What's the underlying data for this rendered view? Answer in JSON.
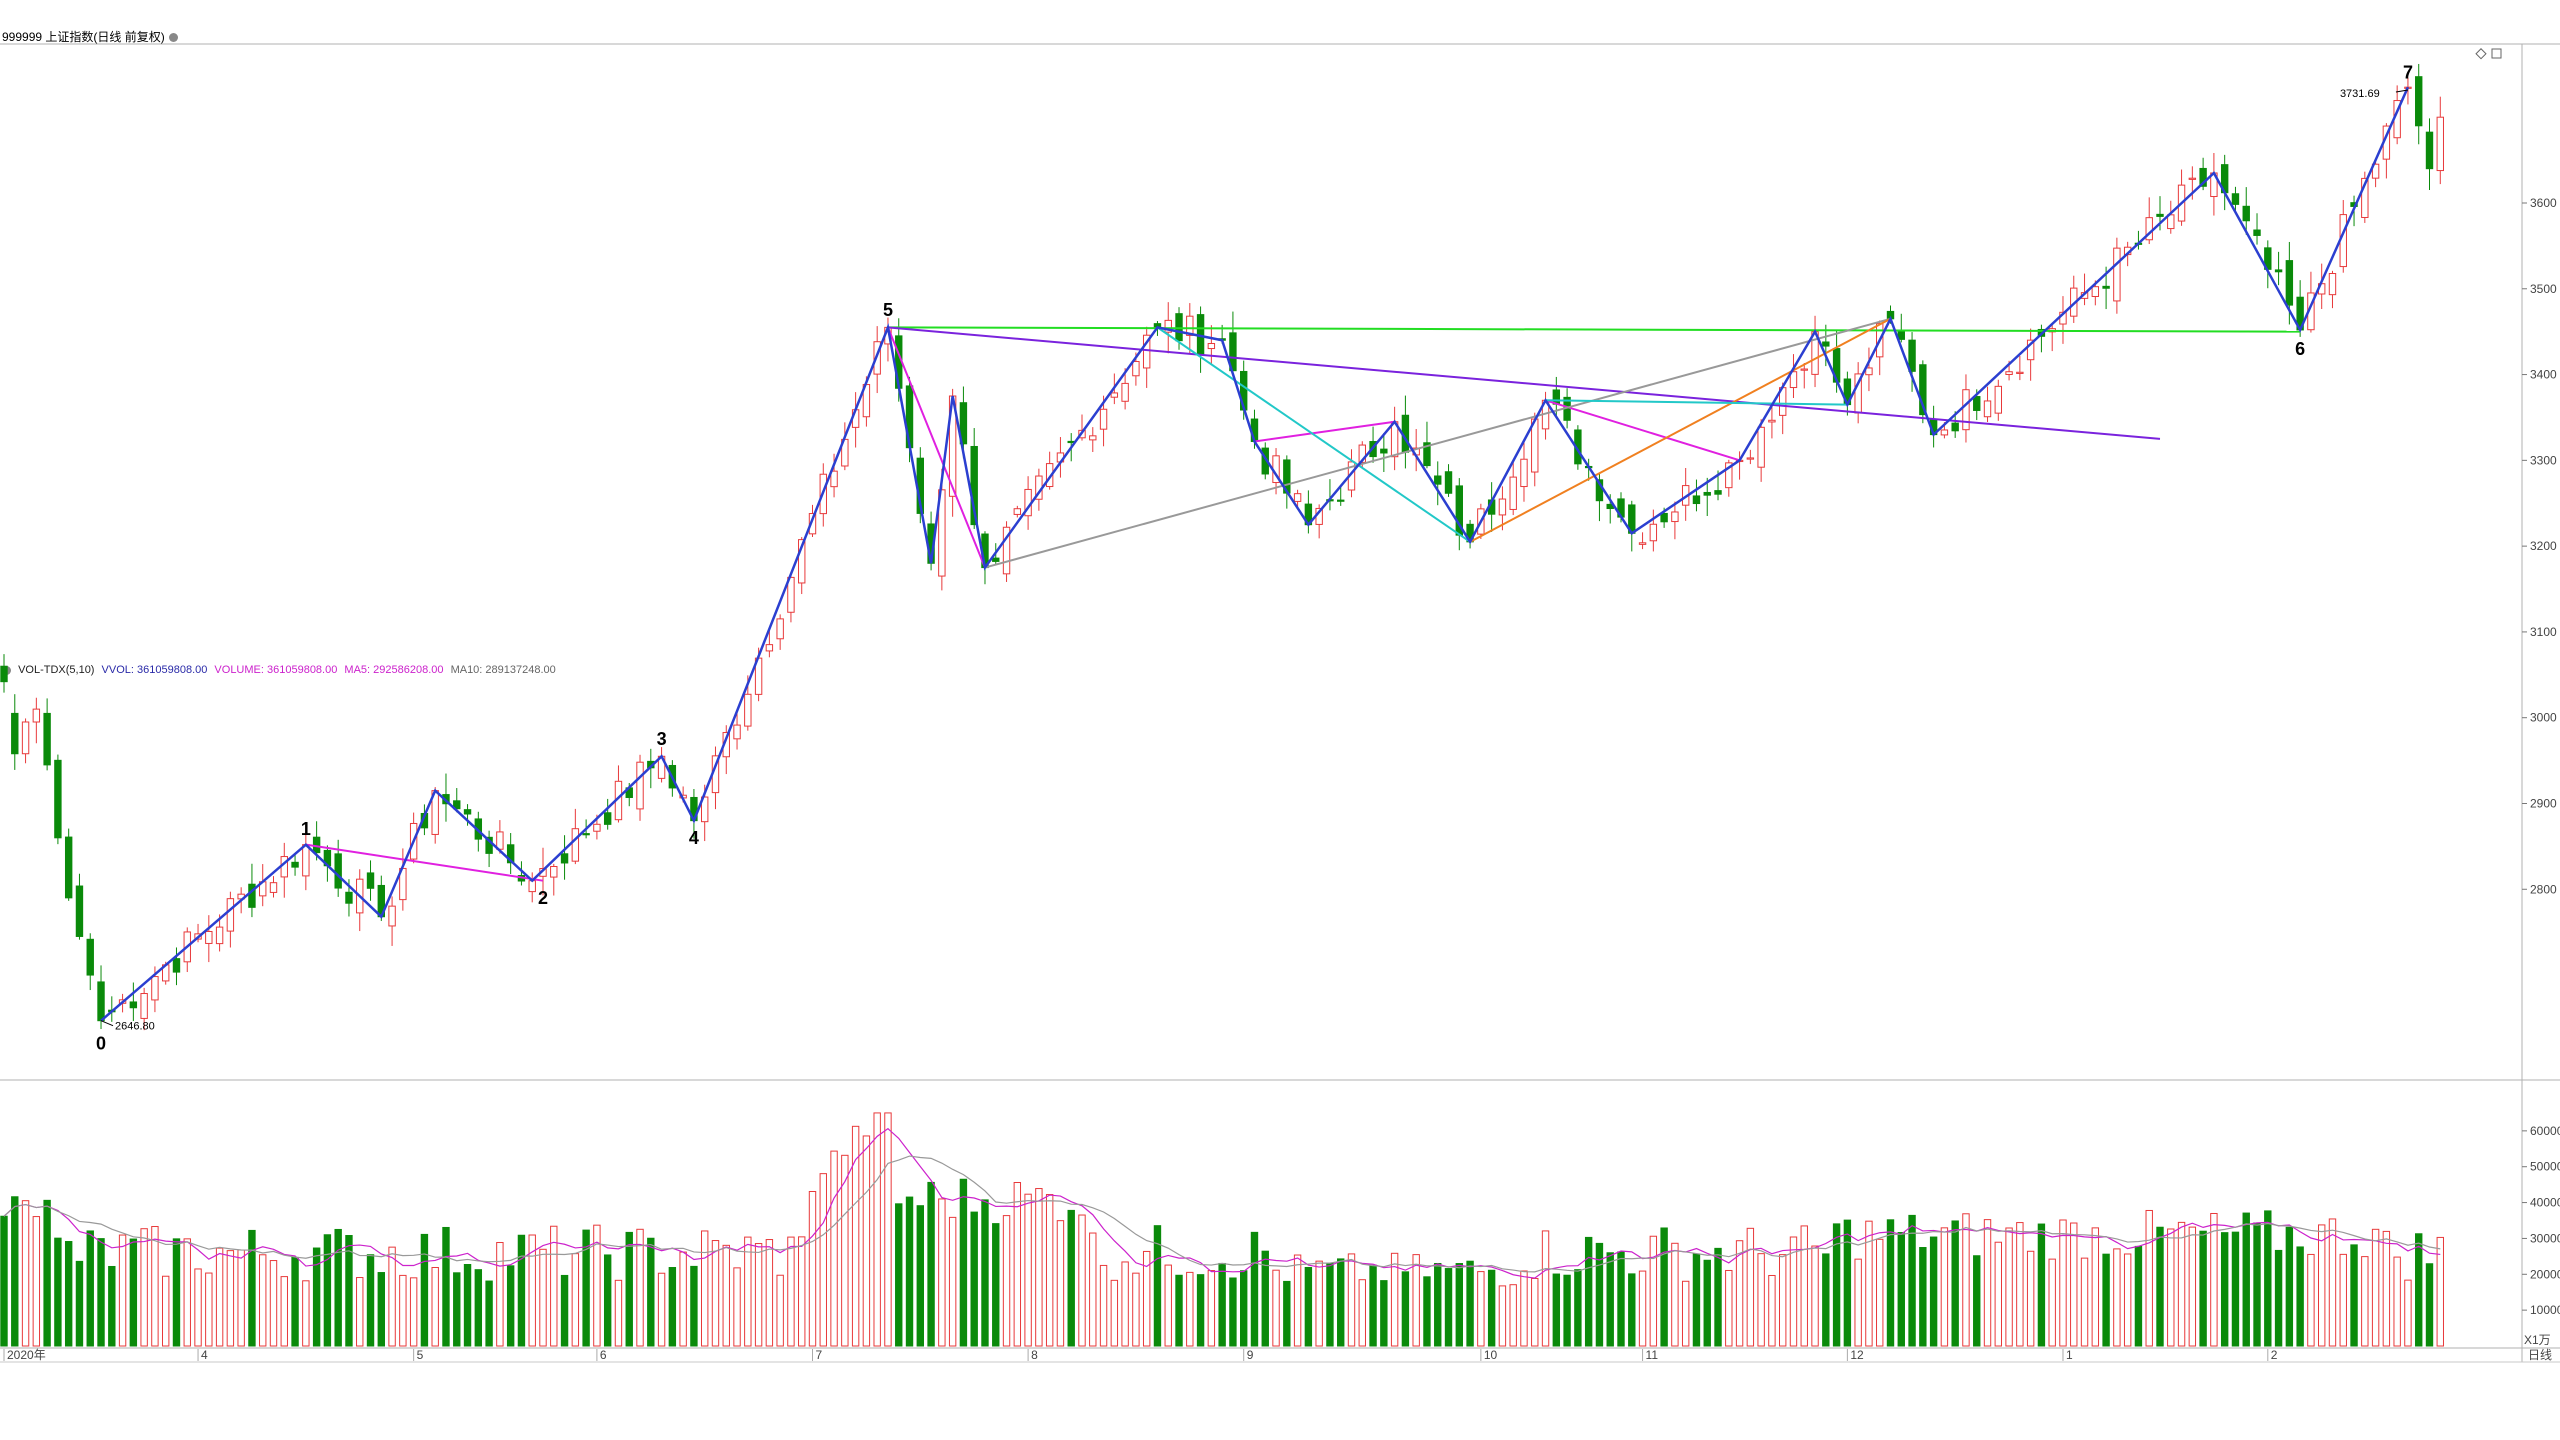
{
  "header": {
    "instrument": "999999 上证指数(日线 前复权)",
    "info_icon": "gear-icon"
  },
  "vol_header": {
    "indicator": "VOL-TDX(5,10)",
    "vvol": "VVOL: 361059808.00",
    "volume": "VOLUME: 361059808.00",
    "ma5": "MA5: 292586208.00",
    "ma10": "MA10: 289137248.00"
  },
  "colors": {
    "up": "#e8393a",
    "down": "#0a8a0a",
    "wave": "#2b3fd0",
    "magenta": "#e020e0",
    "green_line": "#22dd22",
    "purple": "#7a22dd",
    "cyan": "#22c8c8",
    "gray": "#999999",
    "orange": "#f08020",
    "ma5": "#cc22cc",
    "ma10": "#999999"
  },
  "chart_data": {
    "type": "candlestick",
    "title": "999999 上证指数(日线 前复权)",
    "ylim": [
      2580,
      3790
    ],
    "y_ticks": [
      2800,
      2900,
      3000,
      3100,
      3200,
      3300,
      3400,
      3500,
      3600
    ],
    "x_labels": [
      "2020年",
      "4",
      "5",
      "6",
      "7",
      "8",
      "9",
      "10",
      "11",
      "12",
      "1",
      "2"
    ],
    "x_label_days": [
      0,
      18,
      38,
      55,
      75,
      95,
      115,
      137,
      152,
      171,
      191,
      210
    ],
    "period_label": "日线",
    "annotations": {
      "low_value": "2646.80",
      "high_value": "3731.69"
    },
    "wave_labels": [
      {
        "label": "0",
        "day": 9,
        "price": 2620
      },
      {
        "label": "1",
        "day": 28,
        "price": 2870
      },
      {
        "label": "2",
        "day": 50,
        "price": 2790
      },
      {
        "label": "3",
        "day": 61,
        "price": 2975
      },
      {
        "label": "4",
        "day": 64,
        "price": 2860
      },
      {
        "label": "5",
        "day": 82,
        "price": 3475
      },
      {
        "label": "6",
        "day": 213,
        "price": 3430
      },
      {
        "label": "7",
        "day": 223,
        "price": 3752
      }
    ],
    "candles_first": [
      [
        3060,
        3042,
        3066,
        3036
      ],
      [
        3005,
        2958,
        3012,
        2952
      ],
      [
        2958,
        2995,
        3002,
        2910
      ],
      [
        2995,
        3010,
        3018,
        2984
      ],
      [
        3005,
        2945,
        3010,
        2940
      ]
    ],
    "candles_note": "series continues per-day in the script from the same data",
    "wave_path": [
      [
        9,
        2646.8
      ],
      [
        28,
        2852
      ],
      [
        35,
        2768
      ],
      [
        40,
        2915
      ],
      [
        49,
        2810
      ],
      [
        61,
        2955
      ],
      [
        64,
        2880
      ],
      [
        82,
        3455
      ],
      [
        86,
        3180
      ],
      [
        88,
        3375
      ],
      [
        91,
        3175
      ],
      [
        107,
        3455
      ],
      [
        113,
        3440
      ],
      [
        116,
        3322
      ],
      [
        121,
        3225
      ],
      [
        129,
        3345
      ],
      [
        136,
        3205
      ],
      [
        143,
        3370
      ],
      [
        151,
        3215
      ],
      [
        161,
        3300
      ],
      [
        168,
        3450
      ],
      [
        171,
        3365
      ],
      [
        175,
        3465
      ],
      [
        179,
        3330
      ],
      [
        205,
        3635
      ],
      [
        213,
        3452
      ],
      [
        223,
        3735
      ]
    ],
    "volume": {
      "unit": "X1万",
      "ylim": [
        0,
        70000
      ],
      "y_ticks": [
        10000,
        20000,
        30000,
        40000,
        50000,
        60000
      ]
    }
  }
}
